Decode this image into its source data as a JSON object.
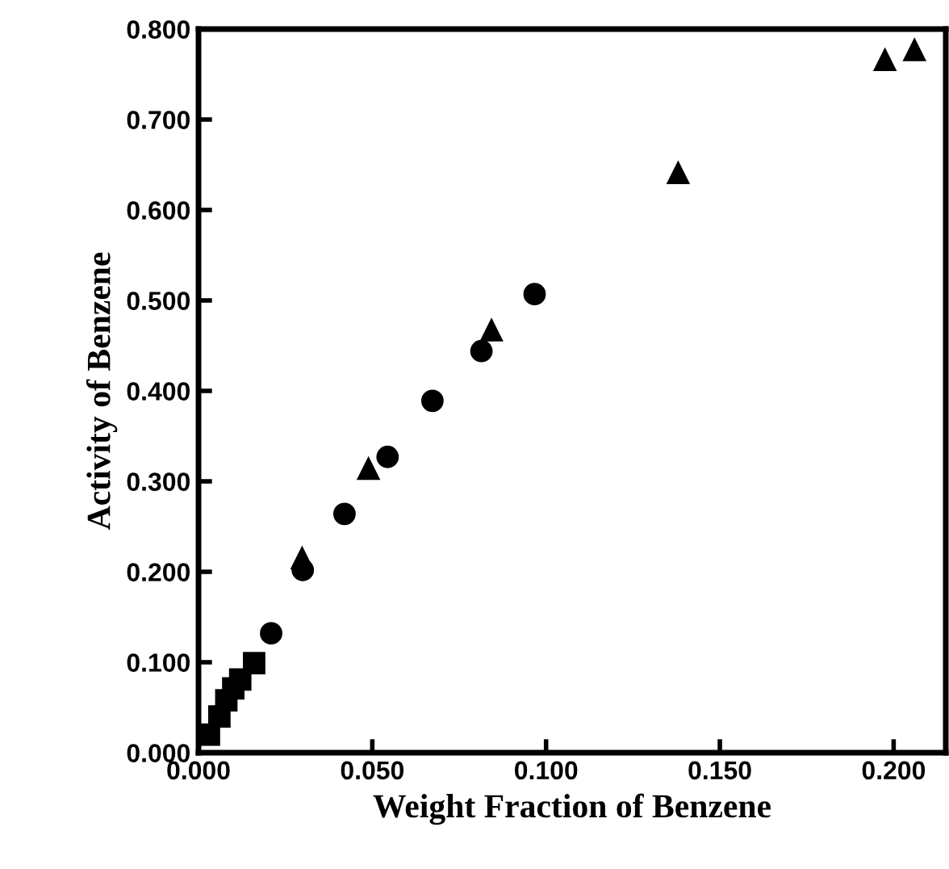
{
  "chart_data": {
    "type": "scatter",
    "xlabel": "Weight Fraction of Benzene",
    "ylabel": "Activity of Benzene",
    "xlim": [
      0,
      0.215
    ],
    "ylim": [
      0,
      0.8
    ],
    "xticks": [
      {
        "value": 0,
        "label": "0.000"
      },
      {
        "value": 0.05,
        "label": "0.050"
      },
      {
        "value": 0.1,
        "label": "0.100"
      },
      {
        "value": 0.15,
        "label": "0.150"
      },
      {
        "value": 0.2,
        "label": "0.200"
      }
    ],
    "yticks": [
      {
        "value": 0,
        "label": "0.000"
      },
      {
        "value": 0.1,
        "label": "0.100"
      },
      {
        "value": 0.2,
        "label": "0.200"
      },
      {
        "value": 0.3,
        "label": "0.300"
      },
      {
        "value": 0.4,
        "label": "0.400"
      },
      {
        "value": 0.5,
        "label": "0.500"
      },
      {
        "value": 0.6,
        "label": "0.600"
      },
      {
        "value": 0.7,
        "label": "0.700"
      },
      {
        "value": 0.8,
        "label": "0.800"
      }
    ],
    "grid": false,
    "legend": false,
    "series": [
      {
        "color": "#000000",
        "marker": "square",
        "x": [
          0.003,
          0.006,
          0.008,
          0.01,
          0.012,
          0.016
        ],
        "values": [
          0.02,
          0.04,
          0.058,
          0.071,
          0.081,
          0.099
        ]
      },
      {
        "color": "#000000",
        "marker": "circle",
        "x": [
          0.0209,
          0.03,
          0.042,
          0.0544,
          0.0673,
          0.0814,
          0.0967
        ],
        "values": [
          0.132,
          0.202,
          0.264,
          0.327,
          0.389,
          0.444,
          0.507
        ]
      },
      {
        "color": "#000000",
        "marker": "triangle",
        "x": [
          0.0298,
          0.0489,
          0.0843,
          0.138,
          0.1975,
          0.206
        ],
        "values": [
          0.215,
          0.314,
          0.467,
          0.641,
          0.766,
          0.777
        ]
      }
    ]
  }
}
